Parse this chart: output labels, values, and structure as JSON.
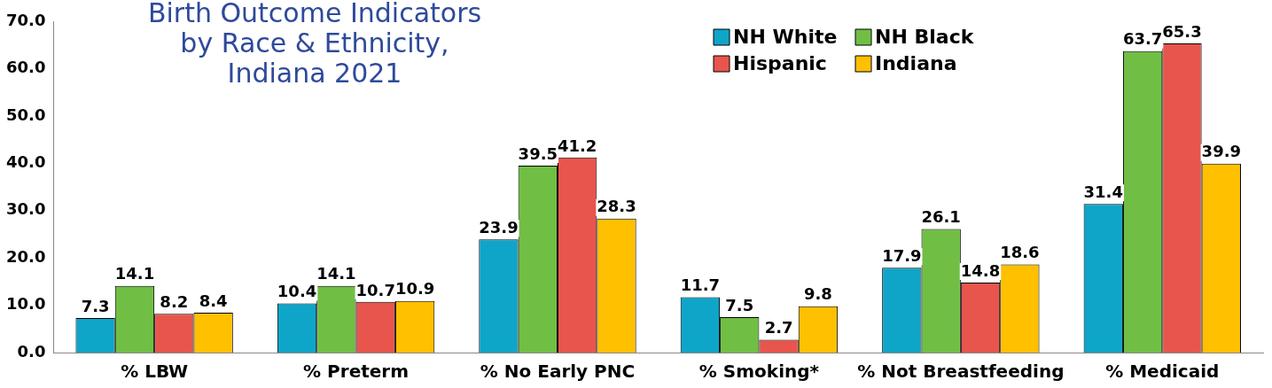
{
  "chart_data": {
    "type": "bar",
    "title": "Birth Outcome Indicators by Race & Ethnicity, Indiana 2021",
    "categories": [
      "% LBW",
      "% Preterm",
      "% No Early PNC",
      "% Smoking*",
      "% Not Breastfeeding",
      "% Medicaid"
    ],
    "series": [
      {
        "name": "NH White",
        "color": "#0ea5c9",
        "values": [
          7.3,
          10.4,
          23.9,
          11.7,
          17.9,
          31.4
        ]
      },
      {
        "name": "NH Black",
        "color": "#70bf44",
        "values": [
          14.1,
          14.1,
          39.5,
          7.5,
          26.1,
          63.7
        ]
      },
      {
        "name": "Hispanic",
        "color": "#e8554c",
        "values": [
          8.2,
          10.7,
          41.2,
          2.7,
          14.8,
          65.3
        ]
      },
      {
        "name": "Indiana",
        "color": "#ffc000",
        "values": [
          8.4,
          10.9,
          28.3,
          9.8,
          18.6,
          39.9
        ]
      }
    ],
    "ylim": [
      0,
      70
    ],
    "yticks": [
      {
        "value": 0,
        "label": "0.0"
      },
      {
        "value": 10,
        "label": "10.0"
      },
      {
        "value": 20,
        "label": "20.0"
      },
      {
        "value": 30,
        "label": "30.0"
      },
      {
        "value": 40,
        "label": "40.0"
      },
      {
        "value": 50,
        "label": "50.0"
      },
      {
        "value": 60,
        "label": "60.0"
      },
      {
        "value": 70,
        "label": "70.0"
      }
    ],
    "grid": false,
    "legend": "top right",
    "data_labels": true
  }
}
